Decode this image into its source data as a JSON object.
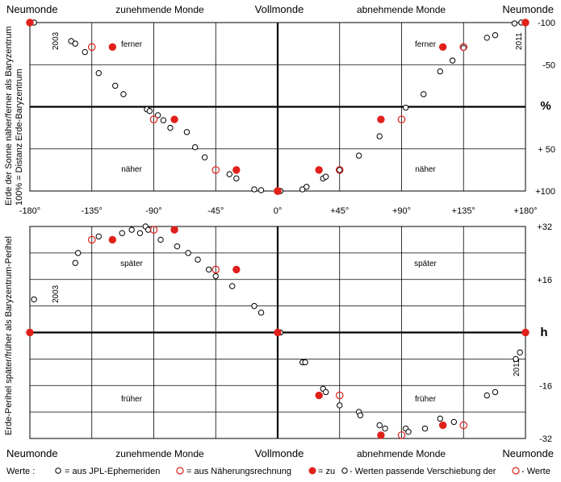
{
  "phase_labels": {
    "left": "Neumonde",
    "waxing": "zunehmende Monde",
    "full": "Vollmonde",
    "waning": "abnehmende Monde",
    "right": "Neumonde"
  },
  "top_chart": {
    "ylabel_line1": "Erde der Sonne näher/ferner als Baryzentrum",
    "ylabel_line2": "100% = Distanz  Erde-Baryzentrum",
    "unit": "%",
    "tick_labels": [
      "-100",
      "-50",
      "+ 50",
      "+100"
    ],
    "tick_values": [
      -100,
      -50,
      50,
      100
    ],
    "region_labels": [
      "ferner",
      "ferner",
      "näher",
      "näher"
    ],
    "year_start": "2003",
    "year_end": "2011"
  },
  "x_axis": {
    "tick_labels": [
      "-180°",
      "-135°",
      "-90°",
      "-45°",
      "0°",
      "+45°",
      "+90°",
      "+135°",
      "+180°"
    ],
    "tick_values": [
      -180,
      -135,
      -90,
      -45,
      0,
      45,
      90,
      135,
      180
    ]
  },
  "bottom_chart": {
    "ylabel_line1": "Erde-Perihel  später/früher als Baryzentrum-Perihel",
    "unit": "h",
    "tick_labels": [
      "+32",
      "+16",
      "-16",
      "-32"
    ],
    "tick_values": [
      32,
      16,
      -16,
      -32
    ],
    "region_labels": [
      "später",
      "später",
      "früher",
      "früher"
    ],
    "year_start": "2003",
    "year_end": "2011"
  },
  "legend": {
    "prefix": "Werte :",
    "item1": "= aus JPL-Ephemeriden",
    "item2": "= aus Näherungsrechnung",
    "item3_a": "= zu",
    "item3_b": "- Werten  passende Verschiebung der",
    "item3_c": "- Werte"
  },
  "colors": {
    "jpl": "#000000",
    "approx": "#e0201a",
    "grid": "#000000",
    "newmoon_marker": "#e0201a"
  },
  "chart_data": [
    {
      "type": "scatter",
      "title": "",
      "xlabel": "",
      "ylabel": "Erde der Sonne näher/ferner als Baryzentrum",
      "xlim": [
        -180,
        180
      ],
      "ylim": [
        -100,
        100
      ],
      "y_inverted": true,
      "grid": true,
      "series": [
        {
          "name": "aus JPL-Ephemeriden",
          "marker": "open-circle-black",
          "x": [
            -177,
            -150,
            -147,
            -140,
            -130,
            -118,
            -112,
            -95,
            -93,
            -87,
            -83,
            -78,
            -66,
            -60,
            -53,
            -35,
            -30,
            -17,
            -12,
            0,
            2,
            18,
            21,
            33,
            35,
            45,
            59,
            74,
            93,
            106,
            118,
            127,
            135,
            152,
            158,
            172,
            177
          ],
          "y": [
            -100,
            -78,
            -75,
            -65,
            -40,
            -25,
            -15,
            3,
            5,
            10,
            16,
            25,
            30,
            48,
            60,
            80,
            85,
            98,
            99,
            101,
            100,
            98,
            95,
            85,
            83,
            75,
            58,
            35,
            1,
            -15,
            -42,
            -55,
            -70,
            -82,
            -85,
            -99,
            -100
          ]
        },
        {
          "name": "aus Näherungsrechnung",
          "marker": "open-circle-red",
          "x": [
            -135,
            -90,
            -45,
            0,
            45,
            90,
            135
          ],
          "y": [
            -71,
            15,
            75,
            100,
            75,
            15,
            -71
          ]
        },
        {
          "name": "zu JPL-Werten passende Verschiebung",
          "marker": "filled-circle-red",
          "x": [
            -120,
            -75,
            -30,
            30,
            75,
            120
          ],
          "y": [
            -71,
            15,
            75,
            75,
            15,
            -71
          ]
        },
        {
          "name": "Neumonde/Vollmonde",
          "marker": "filled-circle-red",
          "x": [
            -180,
            0,
            180
          ],
          "y": [
            -100,
            100,
            -100
          ]
        }
      ]
    },
    {
      "type": "scatter",
      "title": "",
      "xlabel": "",
      "ylabel": "Erde-Perihel später/früher als Baryzentrum-Perihel",
      "xlim": [
        -180,
        180
      ],
      "ylim": [
        -32,
        32
      ],
      "grid": true,
      "series": [
        {
          "name": "aus JPL-Ephemeriden",
          "marker": "open-circle-black",
          "x": [
            -177,
            -147,
            -145,
            -130,
            -113,
            -106,
            -100,
            -96,
            -94,
            -85,
            -73,
            -65,
            -58,
            -50,
            -45,
            -33,
            -17,
            -12,
            2,
            18,
            20,
            33,
            35,
            45,
            59,
            60,
            74,
            78,
            93,
            95,
            107,
            118,
            128,
            152,
            158,
            173,
            176
          ],
          "y": [
            10,
            21,
            24,
            29,
            30,
            31,
            30,
            32,
            31,
            28,
            26,
            24,
            22,
            19,
            17,
            14,
            8,
            6,
            0,
            -9,
            -9,
            -17,
            -18,
            -22,
            -24,
            -25,
            -28,
            -29,
            -29,
            -30,
            -29,
            -26,
            -27,
            -19,
            -18,
            -8,
            -6
          ]
        },
        {
          "name": "aus Näherungsrechnung",
          "marker": "open-circle-red",
          "x": [
            -135,
            -90,
            -45,
            45,
            90,
            135
          ],
          "y": [
            28,
            31,
            19,
            -19,
            -31,
            -28
          ]
        },
        {
          "name": "zu JPL-Werten passende Verschiebung",
          "marker": "filled-circle-red",
          "x": [
            -120,
            -75,
            -30,
            30,
            75,
            120
          ],
          "y": [
            28,
            31,
            19,
            -19,
            -31,
            -28
          ]
        },
        {
          "name": "Neumonde/Vollmonde",
          "marker": "filled-circle-red",
          "x": [
            -180,
            0,
            180
          ],
          "y": [
            0,
            0,
            0
          ]
        }
      ]
    }
  ]
}
